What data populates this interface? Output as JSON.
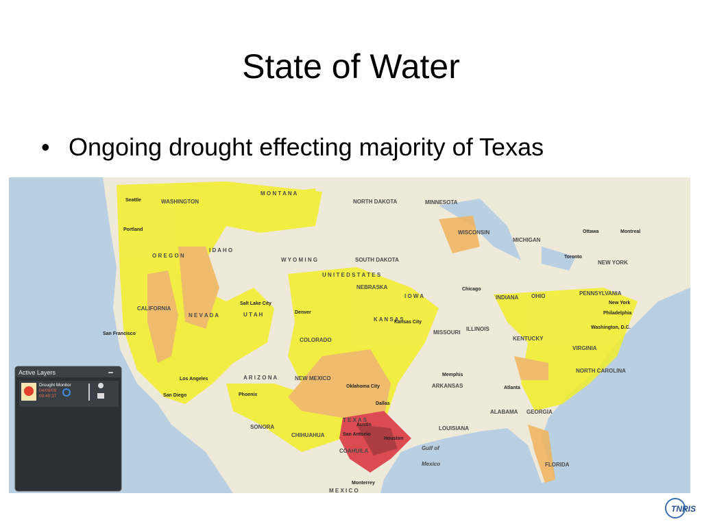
{
  "slide": {
    "title": "State of Water",
    "bullets": [
      "Ongoing drought effecting majority of Texas"
    ]
  },
  "map": {
    "labels": [
      "M O N T A N A",
      "NORTH DAKOTA",
      "MINNESOTA",
      "WASHINGTON",
      "I D A H O",
      "O R E G O N",
      "W Y O M I N G",
      "SOUTH DAKOTA",
      "U N I T E D   S T A T E S",
      "NEBRASKA",
      "I O W A",
      "N E V A D A",
      "U T A H",
      "CALIFORNIA",
      "COLORADO",
      "K A N S A S",
      "MISSOURI",
      "ILLINOIS",
      "INDIANA",
      "OHIO",
      "PENNSYLVANIA",
      "NEW YORK",
      "MICHIGAN",
      "WISCONSIN",
      "KENTUCKY",
      "VIRGINIA",
      "NORTH CAROLINA",
      "ARKANSAS",
      "A R I Z O N A",
      "NEW MEXICO",
      "T E X A S",
      "ALABAMA",
      "GEORGIA",
      "LOUISIANA",
      "FLORIDA",
      "SONORA",
      "CHIHUAHUA",
      "COAHUILA",
      "M E X I C O",
      "Gulf of",
      "Mexico",
      "Seattle",
      "Portland",
      "San Francisco",
      "Los Angeles",
      "San Diego",
      "Phoenix",
      "Denver",
      "Salt Lake City",
      "Dallas",
      "Houston",
      "San Antonio",
      "Austin",
      "Chicago",
      "Toronto",
      "New York",
      "Philadelphia",
      "Washington, D.C.",
      "Atlanta",
      "Memphis",
      "Oklahoma City",
      "Kansas City",
      "Montreal",
      "Ottawa",
      "Monterrey"
    ]
  },
  "panel": {
    "title": "Active Layers",
    "layer": {
      "name": "Drought Monitor",
      "date": "04/09/09",
      "time": "09:40:37"
    }
  },
  "logo": "TNRIS"
}
